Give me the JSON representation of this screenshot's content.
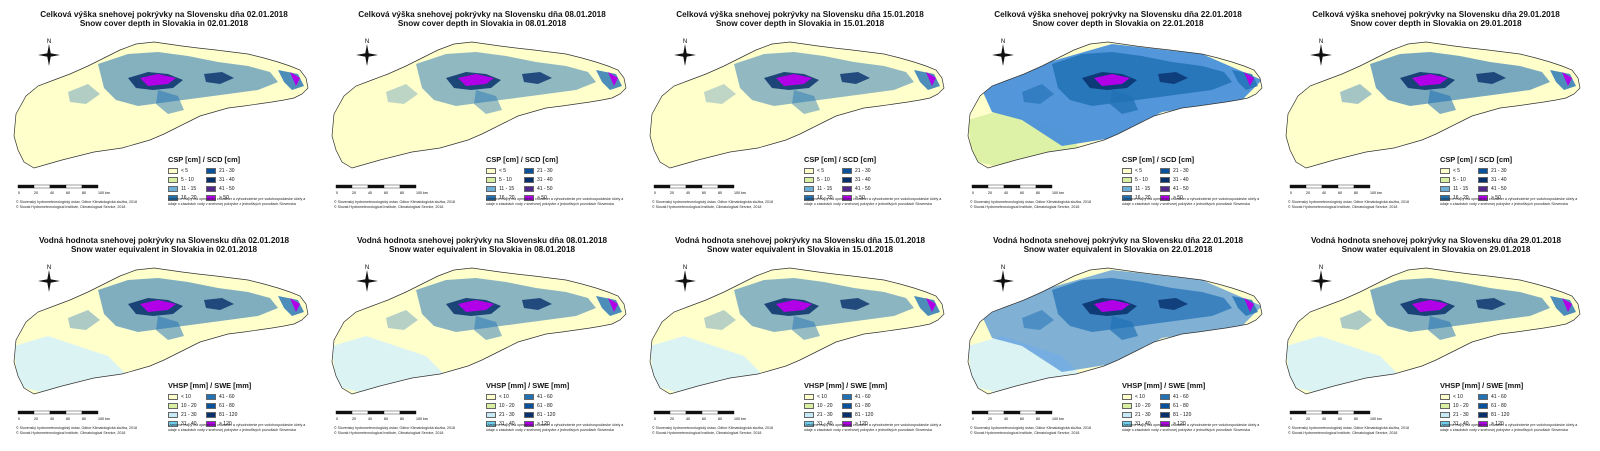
{
  "rows": [
    {
      "panels": [
        {
          "title_sk": "Celková výška snehovej pokrývky na Slovensku dňa 02.01.2018",
          "title_en": "Snow cover depth in Slovakia in 02.01.2018",
          "snow_level": 0.25
        },
        {
          "title_sk": "Celková výška snehovej pokrývky na Slovensku dňa 08.01.2018",
          "title_en": "Snow cover depth in Slovakia in 08.01.2018",
          "snow_level": 0.12
        },
        {
          "title_sk": "Celková výška snehovej pokrývky na Slovensku dňa 15.01.2018",
          "title_en": "Snow cover depth in Slovakia in 15.01.2018",
          "snow_level": 0.1
        },
        {
          "title_sk": "Celková výška snehovej pokrývky na Slovensku dňa 22.01.2018",
          "title_en": "Snow cover depth in Slovakia on 22.01.2018",
          "snow_level": 0.95
        },
        {
          "title_sk": "Celková výška snehovej pokrývky na Slovensku dňa 29.01.2018",
          "title_en": "Snow cover depth in Slovakia on 29.01.2018",
          "snow_level": 0.4
        }
      ],
      "legend": {
        "title": "CSP [cm] / SCD [cm]",
        "items": [
          {
            "label": "< 5",
            "color": "#ffffcc"
          },
          {
            "label": "21 - 30",
            "color": "#08519c"
          },
          {
            "label": "5 - 10",
            "color": "#d9f0a3"
          },
          {
            "label": "31 - 40",
            "color": "#08306b"
          },
          {
            "label": "11 - 15",
            "color": "#6baed6"
          },
          {
            "label": "41 - 50",
            "color": "#54278f"
          },
          {
            "label": "16 - 20",
            "color": "#2171b5"
          },
          {
            "label": "> 50",
            "color": "#b100e8"
          }
        ]
      }
    },
    {
      "panels": [
        {
          "title_sk": "Vodná hodnota snehovej pokrývky na Slovensku dňa 02.01.2018",
          "title_en": "Snow water equivalent in Slovakia in 02.01.2018",
          "snow_level": 0.3
        },
        {
          "title_sk": "Vodná hodnota snehovej pokrývky na Slovensku dňa 08.01.2018",
          "title_en": "Snow water equivalent in Slovakia in 08.01.2018",
          "snow_level": 0.2
        },
        {
          "title_sk": "Vodná hodnota snehovej pokrývky na Slovensku dňa 15.01.2018",
          "title_en": "Snow water equivalent in Slovakia in 15.01.2018",
          "snow_level": 0.18
        },
        {
          "title_sk": "Vodná hodnota snehovej pokrývky na Slovensku dňa 22.01.2018",
          "title_en": "Snow water equivalent in Slovakia on 22.01.2018",
          "snow_level": 0.7
        },
        {
          "title_sk": "Vodná hodnota snehovej pokrývky na Slovensku dňa 29.01.2018",
          "title_en": "Snow water equivalent in Slovakia on 29.01.2018",
          "snow_level": 0.3
        }
      ],
      "legend": {
        "title": "VHSP [mm] / SWE [mm]",
        "items": [
          {
            "label": "< 10",
            "color": "#ffffcc"
          },
          {
            "label": "41 - 60",
            "color": "#2171b5"
          },
          {
            "label": "10 - 20",
            "color": "#d9f0a3"
          },
          {
            "label": "61 - 80",
            "color": "#08519c"
          },
          {
            "label": "21 - 30",
            "color": "#c6e9f5"
          },
          {
            "label": "81 - 120",
            "color": "#08306b"
          },
          {
            "label": "31 - 40",
            "color": "#6fd0f0"
          },
          {
            "label": "> 120",
            "color": "#b100e8"
          }
        ]
      }
    }
  ],
  "north_label": "N",
  "scale_labels": [
    "0",
    "20",
    "40",
    "60",
    "80",
    "100 km"
  ],
  "credits": [
    "© Slovenský hydrometeorologický ústav, Odbor Klimatologická služba, 2018",
    "© Slovak Hydrometeorological Institute, Climatological Service, 2018"
  ],
  "note": "Uvedené mapy má operatívny charakter a vyhodnotenie pre vodohospodárske účely a údaje o zásobách vody v snehovej pokrývke z jednotlivých povodiach Slovenska",
  "colors": {
    "land_low": "#ffffcc",
    "land_mid": "#d9f0a3",
    "mountain": "#2171b5",
    "peak": "#b100e8",
    "dark": "#08306b"
  }
}
